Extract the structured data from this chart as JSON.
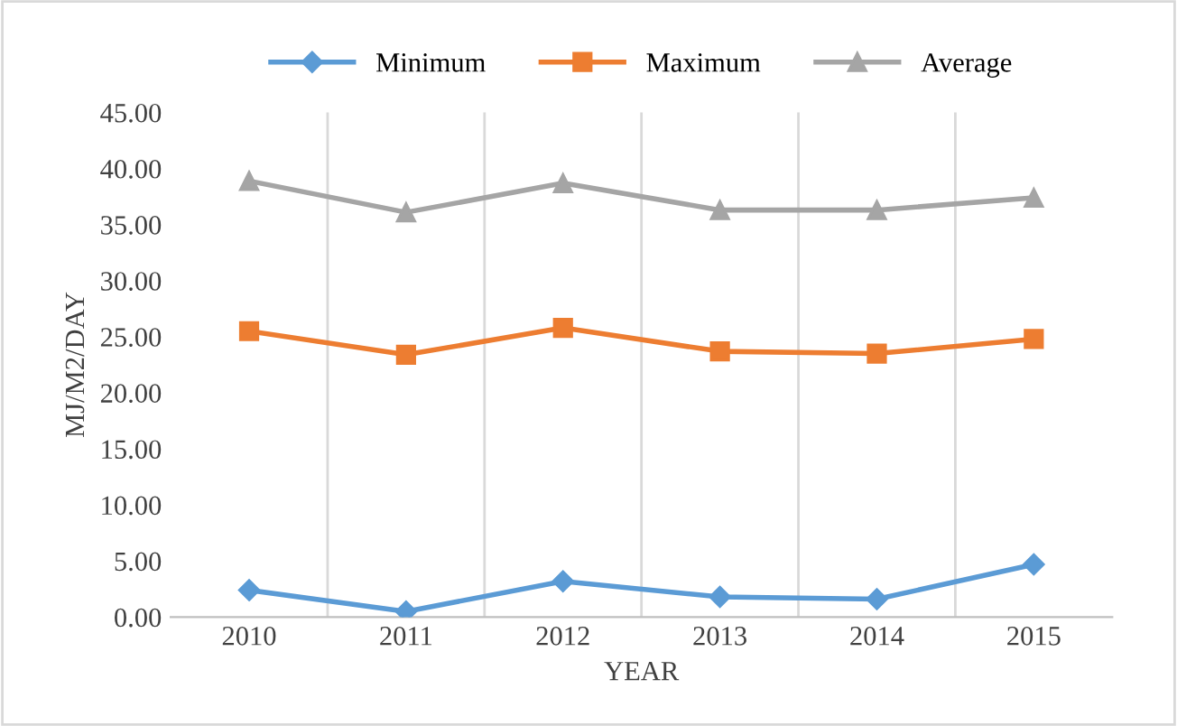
{
  "chart_data": {
    "type": "line",
    "xlabel": "YEAR",
    "ylabel": "MJ/M2/DAY",
    "categories": [
      "2010",
      "2011",
      "2012",
      "2013",
      "2014",
      "2015"
    ],
    "series": [
      {
        "name": "Minimum",
        "color": "#5b9bd5",
        "marker": "diamond",
        "values": [
          2.4,
          0.5,
          3.2,
          1.8,
          1.6,
          4.7
        ]
      },
      {
        "name": "Maximum",
        "color": "#ed7d31",
        "marker": "square",
        "values": [
          25.5,
          23.4,
          25.8,
          23.7,
          23.5,
          24.8
        ]
      },
      {
        "name": "Average",
        "color": "#a5a5a5",
        "marker": "triangle",
        "values": [
          38.9,
          36.1,
          38.7,
          36.3,
          36.3,
          37.4
        ]
      }
    ],
    "ylim": [
      0,
      45
    ],
    "yticks": [
      {
        "value": 0,
        "label": "0.00"
      },
      {
        "value": 5,
        "label": "5.00"
      },
      {
        "value": 10,
        "label": "10.00"
      },
      {
        "value": 15,
        "label": "15.00"
      },
      {
        "value": 20,
        "label": "20.00"
      },
      {
        "value": 25,
        "label": "25.00"
      },
      {
        "value": 30,
        "label": "30.00"
      },
      {
        "value": 35,
        "label": "35.00"
      },
      {
        "value": 40,
        "label": "40.00"
      },
      {
        "value": 45,
        "label": "45.00"
      }
    ],
    "grid": "x",
    "legend": "top"
  }
}
